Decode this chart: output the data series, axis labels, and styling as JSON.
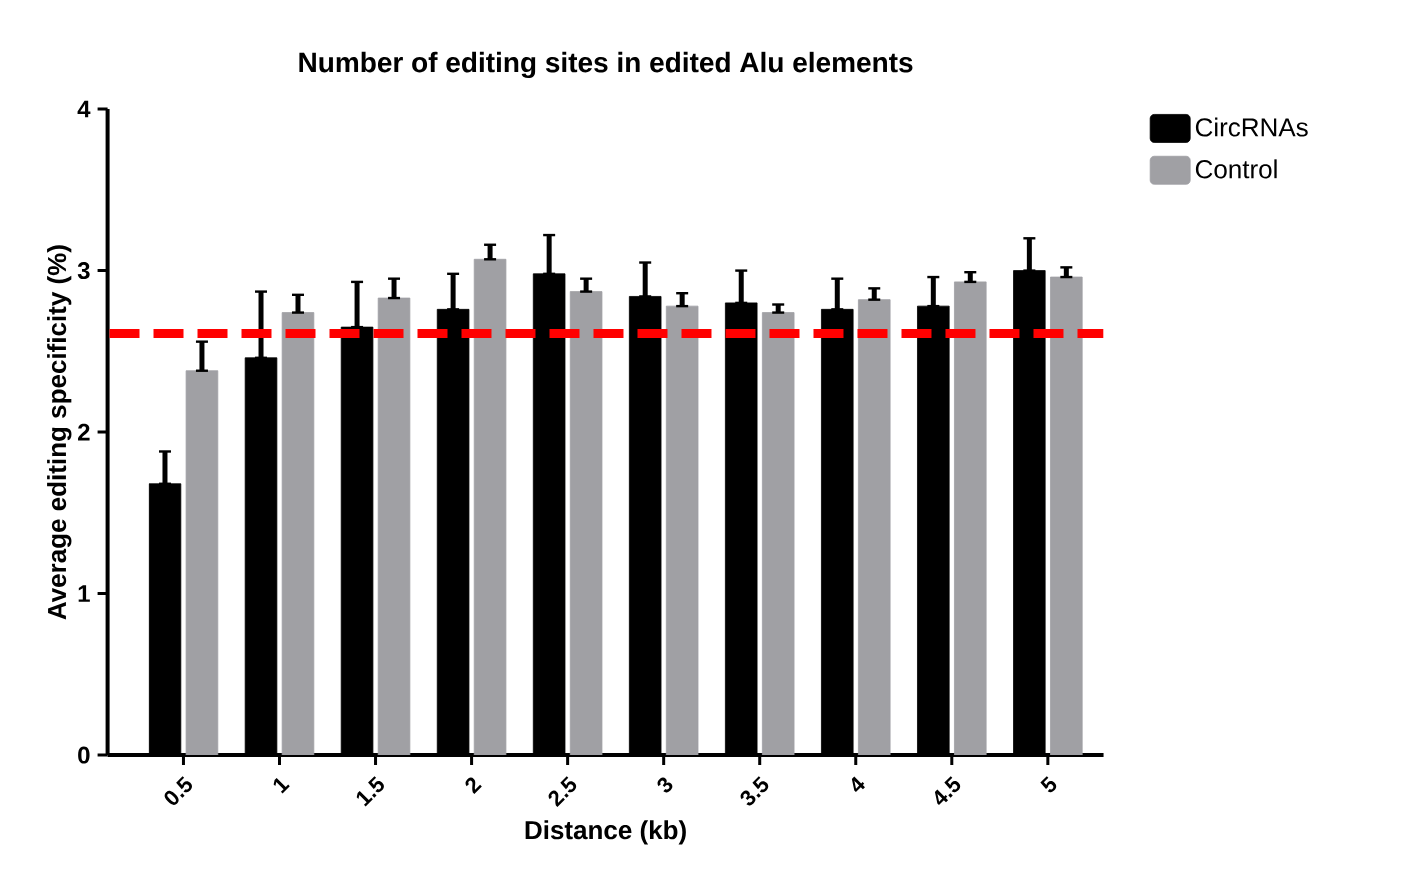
{
  "chart_data": {
    "type": "bar",
    "title": "Number of editing sites in edited Alu elements",
    "xlabel": "Distance (kb)",
    "ylabel": "Average editing specificity (%)",
    "categories": [
      "0.5",
      "1",
      "1.5",
      "2",
      "2.5",
      "3",
      "3.5",
      "4",
      "4.5",
      "5"
    ],
    "series": [
      {
        "name": "CircRNAs",
        "color": "#000000",
        "values": [
          1.68,
          2.46,
          2.65,
          2.76,
          2.98,
          2.84,
          2.8,
          2.76,
          2.78,
          3.0
        ],
        "errors": [
          [
            1.68,
            1.88
          ],
          [
            2.46,
            2.87
          ],
          [
            2.65,
            2.93
          ],
          [
            2.76,
            2.98
          ],
          [
            2.98,
            3.22
          ],
          [
            2.84,
            3.05
          ],
          [
            2.8,
            3.0
          ],
          [
            2.76,
            2.95
          ],
          [
            2.78,
            2.96
          ],
          [
            3.0,
            3.2
          ]
        ]
      },
      {
        "name": "Control",
        "color": "#a0a0a4",
        "values": [
          2.38,
          2.74,
          2.83,
          3.07,
          2.87,
          2.78,
          2.74,
          2.82,
          2.93,
          2.96
        ],
        "errors": [
          [
            2.38,
            2.56
          ],
          [
            2.74,
            2.85
          ],
          [
            2.83,
            2.95
          ],
          [
            3.07,
            3.16
          ],
          [
            2.87,
            2.95
          ],
          [
            2.78,
            2.86
          ],
          [
            2.74,
            2.79
          ],
          [
            2.82,
            2.89
          ],
          [
            2.93,
            2.99
          ],
          [
            2.96,
            3.02
          ]
        ]
      }
    ],
    "ylim": [
      0,
      4
    ],
    "yticks": [
      0,
      1,
      2,
      3,
      4
    ],
    "grid": false,
    "legend": "top right",
    "ref_lines": [
      {
        "axis": "y",
        "value": 2.61,
        "color": "#ff0000",
        "line_style": "dashed"
      }
    ]
  }
}
